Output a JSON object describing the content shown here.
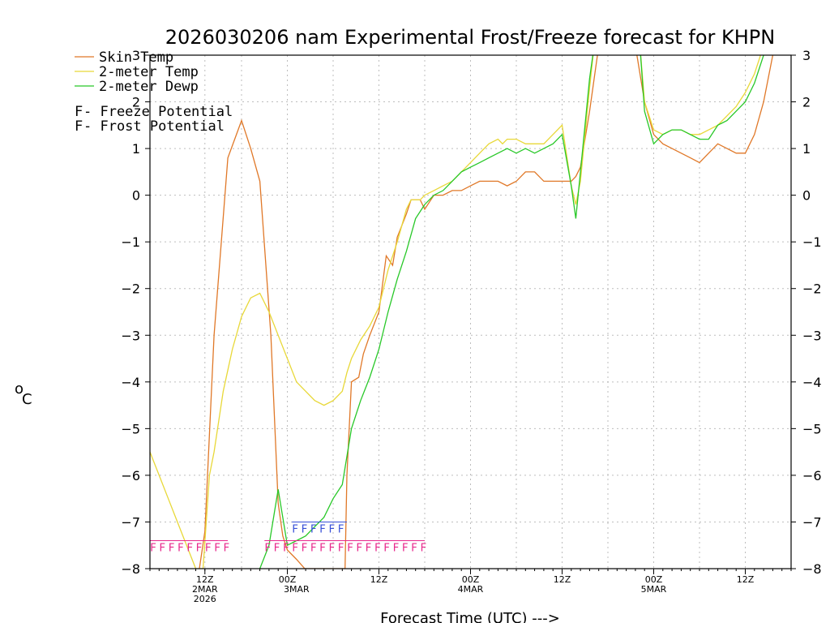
{
  "chart_data": {
    "type": "line",
    "title": "2026030206 nam Experimental Frost/Freeze forecast for KHPN",
    "xlabel": "Forecast Time (UTC) --->",
    "ylabel_degree": "o",
    "ylabel_unit": "C",
    "xlim": [
      0,
      70
    ],
    "ylim": [
      -8,
      3
    ],
    "yticks": [
      -8,
      -7,
      -6,
      -5,
      -4,
      -3,
      -2,
      -1,
      0,
      1,
      2,
      3
    ],
    "ytick_labels": [
      "−8",
      "−7",
      "−6",
      "−5",
      "−4",
      "−3",
      "−2",
      "−1",
      "0",
      "1",
      "2",
      "3"
    ],
    "xticks": [
      {
        "x": 6,
        "lines": [
          "12Z",
          "2MAR",
          "2026"
        ]
      },
      {
        "x": 15,
        "lines": [
          "00Z"
        ]
      },
      {
        "x": 16,
        "lines": [
          "3MAR"
        ]
      },
      {
        "x": 25,
        "lines": [
          "12Z"
        ]
      },
      {
        "x": 35,
        "lines": [
          "00Z",
          "4MAR"
        ]
      },
      {
        "x": 45,
        "lines": [
          "12Z"
        ]
      },
      {
        "x": 55,
        "lines": [
          "00Z",
          "5MAR"
        ]
      },
      {
        "x": 65,
        "lines": [
          "12Z"
        ]
      }
    ],
    "legend": {
      "position": "top-left",
      "entries": [
        {
          "label": "Skin Temp",
          "color": "#e07828"
        },
        {
          "label": "2-meter Temp",
          "color": "#e8d838"
        },
        {
          "label": "2-meter Dewp",
          "color": "#28c828"
        }
      ],
      "potential_entries": [
        {
          "mark": "F",
          "label": " - Freeze Potential",
          "color": "#e8288c"
        },
        {
          "mark": "F",
          "label": " - Frost Potential",
          "color": "#3850d8"
        }
      ]
    },
    "series": [
      {
        "name": "Skin Temp",
        "color": "#e07828",
        "points": [
          [
            5.4,
            -8
          ],
          [
            6,
            -7.2
          ],
          [
            7,
            -3
          ],
          [
            8.5,
            0.8
          ],
          [
            10,
            1.6
          ],
          [
            11,
            1
          ],
          [
            12,
            0.3
          ],
          [
            13.2,
            -3
          ],
          [
            14,
            -6.6
          ],
          [
            14.5,
            -7.3
          ],
          [
            15,
            -7.6
          ],
          [
            16,
            -7.8
          ],
          [
            16.9,
            -8
          ],
          [
            21.3,
            -8
          ],
          [
            21.5,
            -6
          ],
          [
            22,
            -4
          ],
          [
            22.8,
            -3.9
          ],
          [
            23.3,
            -3.4
          ],
          [
            24,
            -3
          ],
          [
            25,
            -2.5
          ],
          [
            25.8,
            -1.3
          ],
          [
            26.5,
            -1.5
          ],
          [
            27,
            -0.9
          ],
          [
            28,
            -0.4
          ],
          [
            28.5,
            -0.1
          ],
          [
            29.5,
            -0.1
          ],
          [
            30,
            -0.3
          ],
          [
            31,
            0
          ],
          [
            32,
            0
          ],
          [
            33,
            0.1
          ],
          [
            34,
            0.1
          ],
          [
            35,
            0.2
          ],
          [
            36,
            0.3
          ],
          [
            37,
            0.3
          ],
          [
            38,
            0.3
          ],
          [
            39,
            0.2
          ],
          [
            40,
            0.3
          ],
          [
            41,
            0.5
          ],
          [
            42,
            0.5
          ],
          [
            43,
            0.3
          ],
          [
            44,
            0.3
          ],
          [
            45,
            0.3
          ],
          [
            46,
            0.3
          ],
          [
            46.5,
            0.4
          ],
          [
            47,
            0.6
          ],
          [
            48,
            1.8
          ],
          [
            49,
            3.2
          ],
          [
            53,
            3.2
          ],
          [
            54,
            2
          ],
          [
            55,
            1.3
          ],
          [
            56,
            1.1
          ],
          [
            57,
            1
          ],
          [
            58,
            0.9
          ],
          [
            59,
            0.8
          ],
          [
            60,
            0.7
          ],
          [
            61,
            0.9
          ],
          [
            62,
            1.1
          ],
          [
            63,
            1
          ],
          [
            64,
            0.9
          ],
          [
            65,
            0.9
          ],
          [
            66,
            1.3
          ],
          [
            67,
            2
          ],
          [
            68,
            3
          ],
          [
            68.5,
            3.2
          ]
        ]
      },
      {
        "name": "2-meter Temp",
        "color": "#e8d838",
        "points": [
          [
            0,
            -5.5
          ],
          [
            1,
            -6
          ],
          [
            2,
            -6.5
          ],
          [
            3,
            -7
          ],
          [
            4,
            -7.5
          ],
          [
            5,
            -8
          ],
          [
            5.8,
            -8
          ],
          [
            6.5,
            -6
          ],
          [
            7,
            -5.5
          ],
          [
            8,
            -4.2
          ],
          [
            9,
            -3.3
          ],
          [
            10,
            -2.6
          ],
          [
            11,
            -2.2
          ],
          [
            12,
            -2.1
          ],
          [
            13,
            -2.5
          ],
          [
            14,
            -3
          ],
          [
            15,
            -3.5
          ],
          [
            16,
            -4
          ],
          [
            17,
            -4.2
          ],
          [
            18,
            -4.4
          ],
          [
            19,
            -4.5
          ],
          [
            20,
            -4.4
          ],
          [
            21,
            -4.2
          ],
          [
            21.5,
            -3.8
          ],
          [
            22,
            -3.5
          ],
          [
            23,
            -3.1
          ],
          [
            24,
            -2.8
          ],
          [
            25,
            -2.4
          ],
          [
            26,
            -1.6
          ],
          [
            27,
            -1
          ],
          [
            28,
            -0.3
          ],
          [
            28.5,
            -0.1
          ],
          [
            29.5,
            -0.1
          ],
          [
            30,
            0
          ],
          [
            31,
            0.1
          ],
          [
            32,
            0.2
          ],
          [
            33,
            0.3
          ],
          [
            34,
            0.5
          ],
          [
            35,
            0.7
          ],
          [
            36,
            0.9
          ],
          [
            37,
            1.1
          ],
          [
            38,
            1.2
          ],
          [
            38.5,
            1.1
          ],
          [
            39,
            1.2
          ],
          [
            40,
            1.2
          ],
          [
            41,
            1.1
          ],
          [
            42,
            1.1
          ],
          [
            43,
            1.1
          ],
          [
            44,
            1.3
          ],
          [
            45,
            1.5
          ],
          [
            46,
            0.2
          ],
          [
            46.5,
            -0.2
          ],
          [
            47,
            0.3
          ],
          [
            48,
            2.3
          ],
          [
            48.5,
            3.2
          ],
          [
            53.5,
            3.2
          ],
          [
            54,
            2
          ],
          [
            55,
            1.4
          ],
          [
            56,
            1.3
          ],
          [
            57,
            1.4
          ],
          [
            58,
            1.4
          ],
          [
            59,
            1.3
          ],
          [
            60,
            1.3
          ],
          [
            61,
            1.4
          ],
          [
            62,
            1.5
          ],
          [
            63,
            1.7
          ],
          [
            64,
            1.9
          ],
          [
            65,
            2.2
          ],
          [
            66,
            2.6
          ],
          [
            67,
            3.2
          ]
        ]
      },
      {
        "name": "2-meter Dewp",
        "color": "#28c828",
        "points": [
          [
            12,
            -8
          ],
          [
            13,
            -7.5
          ],
          [
            14,
            -6.3
          ],
          [
            15,
            -7.5
          ],
          [
            16,
            -7.4
          ],
          [
            17,
            -7.3
          ],
          [
            18,
            -7.1
          ],
          [
            19,
            -6.9
          ],
          [
            20,
            -6.5
          ],
          [
            21,
            -6.2
          ],
          [
            22,
            -5
          ],
          [
            23,
            -4.4
          ],
          [
            24,
            -3.9
          ],
          [
            25,
            -3.3
          ],
          [
            26,
            -2.5
          ],
          [
            27,
            -1.8
          ],
          [
            28,
            -1.2
          ],
          [
            29,
            -0.5
          ],
          [
            30,
            -0.2
          ],
          [
            31,
            0
          ],
          [
            32,
            0.1
          ],
          [
            33,
            0.3
          ],
          [
            34,
            0.5
          ],
          [
            35,
            0.6
          ],
          [
            36,
            0.7
          ],
          [
            37,
            0.8
          ],
          [
            38,
            0.9
          ],
          [
            39,
            1
          ],
          [
            40,
            0.9
          ],
          [
            41,
            1
          ],
          [
            42,
            0.9
          ],
          [
            43,
            1
          ],
          [
            44,
            1.1
          ],
          [
            45,
            1.3
          ],
          [
            46,
            0.2
          ],
          [
            46.5,
            -0.5
          ],
          [
            47,
            0.5
          ],
          [
            48,
            2.5
          ],
          [
            48.5,
            3.2
          ],
          [
            53.5,
            3.2
          ],
          [
            54,
            1.8
          ],
          [
            55,
            1.1
          ],
          [
            56,
            1.3
          ],
          [
            57,
            1.4
          ],
          [
            58,
            1.4
          ],
          [
            59,
            1.3
          ],
          [
            60,
            1.2
          ],
          [
            61,
            1.2
          ],
          [
            62,
            1.5
          ],
          [
            63,
            1.6
          ],
          [
            64,
            1.8
          ],
          [
            65,
            2
          ],
          [
            66,
            2.4
          ],
          [
            67,
            3
          ],
          [
            67.5,
            3.2
          ]
        ]
      }
    ],
    "freeze_potential": {
      "color": "#e8288c",
      "value": -7.4,
      "ranges": [
        [
          0,
          8.5
        ],
        [
          12.5,
          30
        ]
      ]
    },
    "frost_potential": {
      "color": "#3850d8",
      "value": -7,
      "ranges": [
        [
          15.5,
          21.5
        ]
      ]
    },
    "potential_mark": "F"
  }
}
